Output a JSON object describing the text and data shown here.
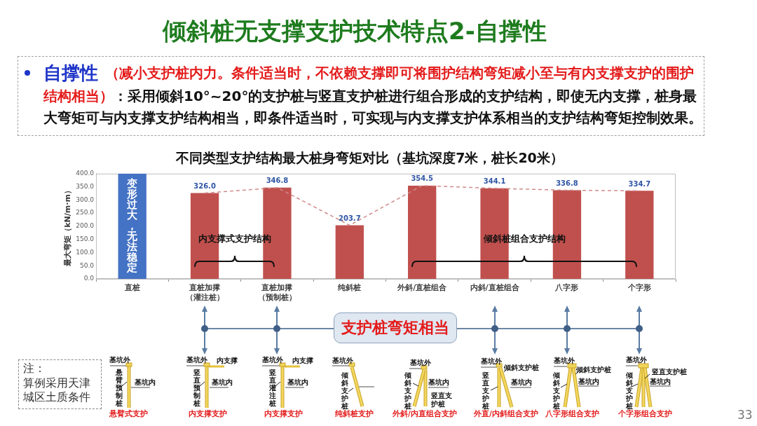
{
  "chart_data": {
    "type": "bar",
    "title": "不同类型支护结构最大桩身弯矩对比（基坑深度7米，桩长20米）",
    "ylabel": "最大弯矩（kN/m·m）",
    "categories": [
      "直桩",
      "直桩加撑（灌注桩）",
      "直桩加撑（预制桩）",
      "纯斜桩",
      "外斜/直桩组合",
      "内斜/直桩组合",
      "八字形",
      "个字形"
    ],
    "series": [
      {
        "colors": [
          "#4472c4",
          "#c0504d",
          "#c0504d",
          "#c0504d",
          "#c0504d",
          "#c0504d",
          "#c0504d",
          "#c0504d"
        ],
        "values": [
          400,
          326.0,
          346.8,
          203.7,
          354.5,
          344.1,
          336.8,
          334.7
        ],
        "value_labels": [
          "变形过大，无法稳定",
          "326.0",
          "346.8",
          "203.7",
          "354.5",
          "344.1",
          "336.8",
          "334.7"
        ]
      },
      {
        "type": "line",
        "color": "#d08a8a",
        "values": [
          null,
          326.0,
          346.8,
          203.7,
          354.5,
          344.1,
          336.8,
          334.7
        ]
      }
    ],
    "line_style": "dashed",
    "ylim": [
      0,
      400
    ],
    "yticks": [
      {
        "value": 0,
        "label": "0.0"
      },
      {
        "value": 50,
        "label": "50.0"
      },
      {
        "value": 100,
        "label": "100.0"
      },
      {
        "value": 150,
        "label": "150.0"
      },
      {
        "value": 200,
        "label": "200.0"
      },
      {
        "value": 250,
        "label": "250.0"
      },
      {
        "value": 300,
        "label": "300.0"
      },
      {
        "value": 350,
        "label": "350.0"
      },
      {
        "value": 400,
        "label": "400.0"
      }
    ],
    "annotations": [
      "倾斜桩无支撑支护技术特点2-自撑性",
      "自撑性",
      "（减小支护桩内力。条件适当时，不依赖支撑即可将围护结构弯矩减小至与有内支撑支护的围护",
      "结构相当）",
      "：采用倾斜10°~20°的支护桩与竖直支护桩进行组合形成的支护结构，即使无内支撑，桩身最",
      "大弯矩可与内支撑支护结构相当，即条件适当时，可实现与内支撑支护体系相当的支护结构弯矩控制效果。",
      "内支撑式支护结构",
      "倾斜桩组合支护结构",
      "支护桩弯矩相当",
      "注：",
      "算例采用天津城区土质条件",
      "33",
      "基坑外",
      "悬臂预制桩",
      "基坑内",
      "悬臂式支护",
      "基坑外",
      "内支撑",
      "竖直预制桩",
      "基坑内",
      "内支撑支护",
      "基坑外",
      "内支撑",
      "竖直灌注桩",
      "基坑内",
      "内支撑支护",
      "基坑外",
      "倾斜支护桩",
      "纯斜桩支护",
      "基坑外",
      "倾斜支护桩",
      "基坑内",
      "竖直支护桩",
      "外斜/内直组合支护",
      "基坑外",
      "倾斜支护桩",
      "竖直支护桩",
      "基坑内",
      "外直/内斜组合支护",
      "基坑外",
      "倾斜支护桩",
      "倾斜支护桩",
      "基坑内",
      "八字形组合支护",
      "基坑外",
      "竖直支护桩",
      "基坑内",
      "倾斜支护桩",
      "个字形组合支护"
    ]
  }
}
